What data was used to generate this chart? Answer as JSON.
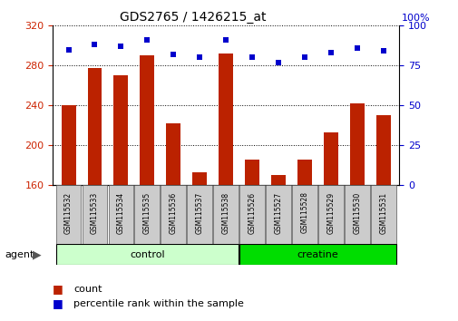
{
  "title": "GDS2765 / 1426215_at",
  "samples": [
    "GSM115532",
    "GSM115533",
    "GSM115534",
    "GSM115535",
    "GSM115536",
    "GSM115537",
    "GSM115538",
    "GSM115526",
    "GSM115527",
    "GSM115528",
    "GSM115529",
    "GSM115530",
    "GSM115531"
  ],
  "counts": [
    240,
    277,
    270,
    290,
    222,
    172,
    292,
    185,
    170,
    185,
    213,
    242,
    230
  ],
  "percentiles": [
    85,
    88,
    87,
    91,
    82,
    80,
    91,
    80,
    77,
    80,
    83,
    86,
    84
  ],
  "ylim_left": [
    160,
    320
  ],
  "ylim_right": [
    0,
    100
  ],
  "yticks_left": [
    160,
    200,
    240,
    280,
    320
  ],
  "yticks_right": [
    0,
    25,
    50,
    75,
    100
  ],
  "bar_color": "#BB2200",
  "dot_color": "#0000CC",
  "groups": [
    {
      "label": "control",
      "indices": [
        0,
        1,
        2,
        3,
        4,
        5,
        6
      ],
      "color": "#CCFFCC"
    },
    {
      "label": "creatine",
      "indices": [
        7,
        8,
        9,
        10,
        11,
        12
      ],
      "color": "#00DD00"
    }
  ],
  "tick_label_color_left": "#CC2200",
  "tick_label_color_right": "#0000CC",
  "bar_width": 0.55,
  "dot_size": 22,
  "legend_count_label": "count",
  "legend_pct_label": "percentile rank within the sample",
  "right_top_label": "100%"
}
